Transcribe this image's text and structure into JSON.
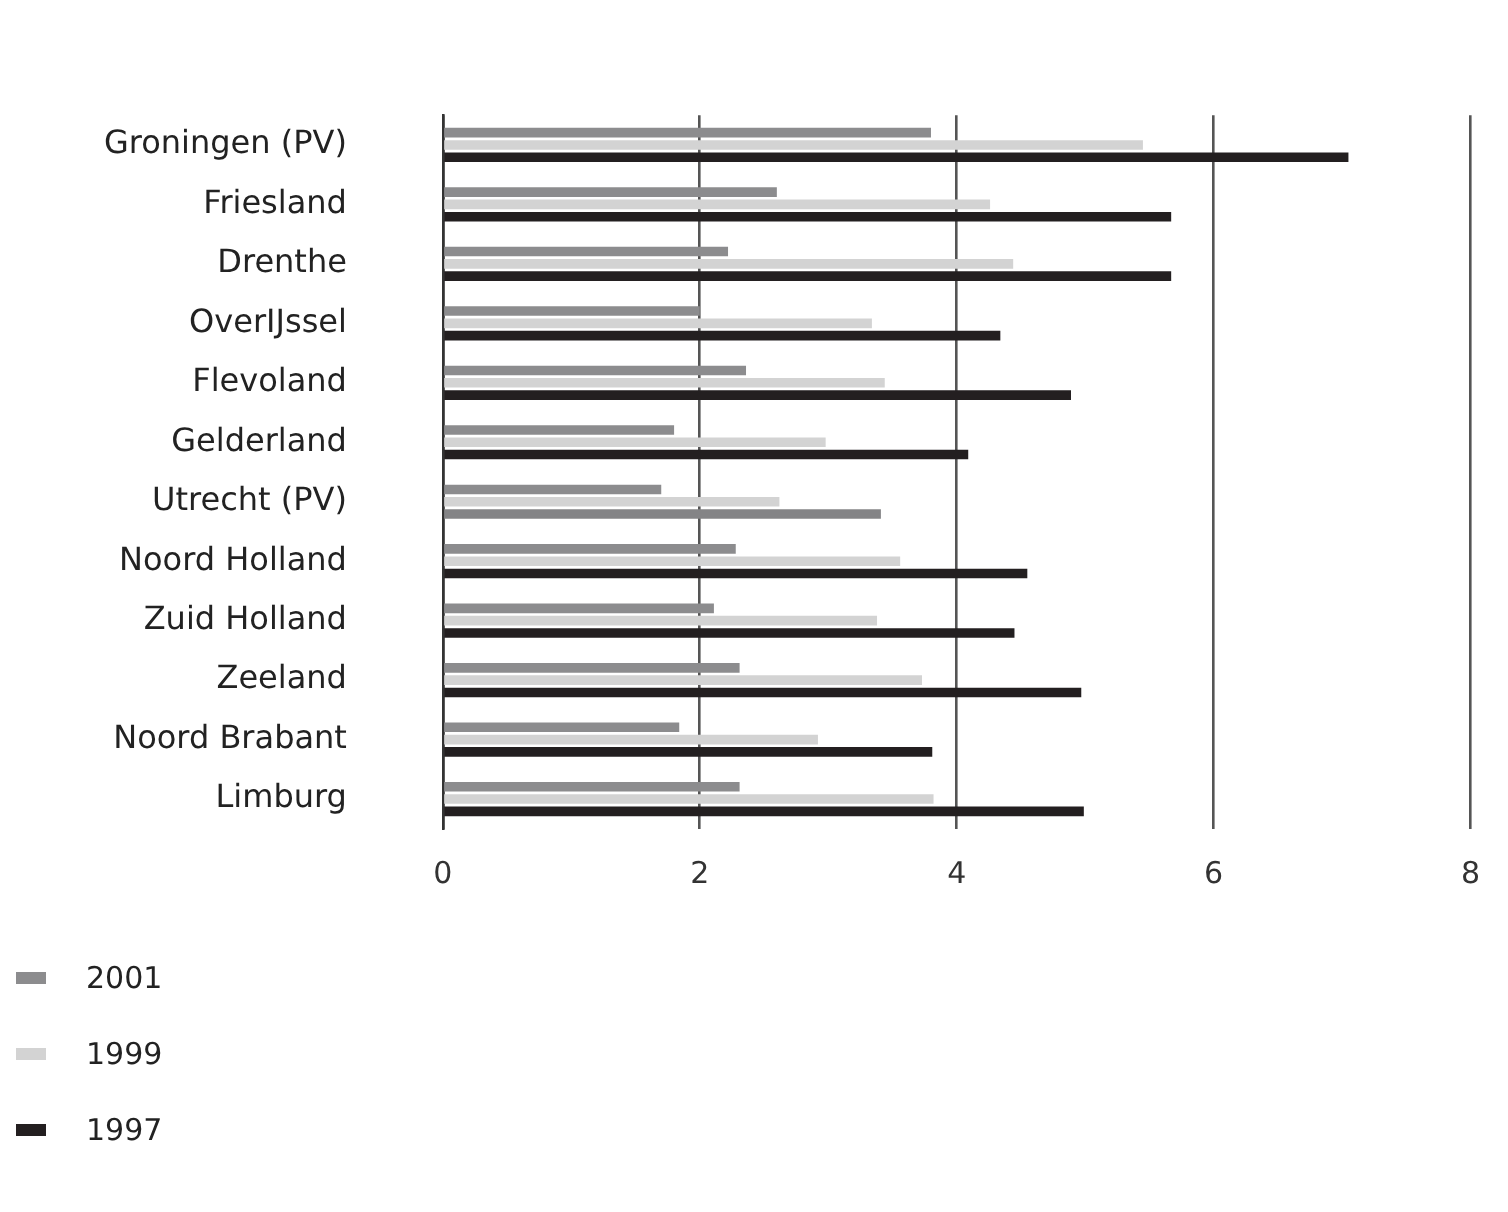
{
  "chart_data": {
    "type": "bar",
    "orientation": "horizontal",
    "categories": [
      "Groningen (PV)",
      "Friesland",
      "Drenthe",
      "OverIJssel",
      "Flevoland",
      "Gelderland",
      "Utrecht (PV)",
      "Noord Holland",
      "Zuid Holland",
      "Zeeland",
      "Noord Brabant",
      "Limburg"
    ],
    "series": [
      {
        "name": "2001",
        "color": "#8c8c8e",
        "values": [
          3.8,
          2.6,
          2.22,
          2.0,
          2.36,
          1.8,
          1.7,
          2.28,
          2.11,
          2.31,
          1.84,
          2.31
        ]
      },
      {
        "name": "1999",
        "color": "#d3d3d3",
        "values": [
          5.45,
          4.26,
          4.44,
          3.34,
          3.44,
          2.98,
          2.62,
          3.56,
          3.38,
          3.73,
          2.92,
          3.82
        ]
      },
      {
        "name": "1997",
        "color": "#231f20",
        "colors": [
          "#231f20",
          "#231f20",
          "#231f20",
          "#231f20",
          "#231f20",
          "#231f20",
          "#848486",
          "#231f20",
          "#231f20",
          "#231f20",
          "#231f20",
          "#231f20"
        ],
        "values": [
          7.05,
          5.67,
          5.67,
          4.34,
          4.89,
          4.09,
          3.41,
          4.55,
          4.45,
          4.97,
          3.81,
          4.99
        ]
      }
    ],
    "xlim": [
      0,
      8
    ],
    "xticks": [
      0,
      2,
      4,
      6,
      8
    ],
    "grid": "x",
    "legend": "bottom left"
  }
}
